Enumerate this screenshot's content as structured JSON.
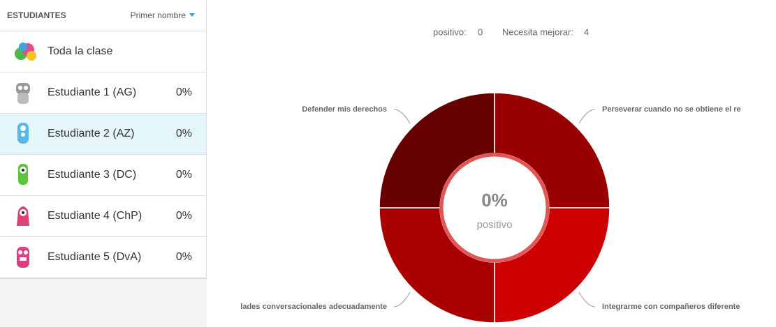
{
  "sidebar": {
    "header": "ESTUDIANTES",
    "sort": "Primer nombre",
    "rows": [
      {
        "name": "Toda la clase"
      },
      {
        "name": "Estudiante 1 (AG)",
        "score": "0%"
      },
      {
        "name": "Estudiante 2 (AZ)",
        "score": "0%"
      },
      {
        "name": "Estudiante 3 (DC)",
        "score": "0%"
      },
      {
        "name": "Estudiante 4 (ChP)",
        "score": "0%"
      },
      {
        "name": "Estudiante 5 (DvA)",
        "score": "0%"
      }
    ]
  },
  "summary": {
    "positive_label": "positivo:",
    "positive": 0,
    "needs_label": "Necesita mejorar:",
    "needs": 4
  },
  "center": {
    "value": "0%",
    "label": "positivo"
  },
  "chart_data": {
    "type": "pie",
    "categories": [
      "Perseverar cuando no se obtiene el re",
      "Integrarme con compañeros diferente",
      "lades conversacionales adecuadamente",
      "Defender mis derechos"
    ],
    "values": [
      1,
      1,
      1,
      1
    ],
    "colors": [
      "#990000",
      "#cc0000",
      "#a80000",
      "#660000"
    ]
  }
}
